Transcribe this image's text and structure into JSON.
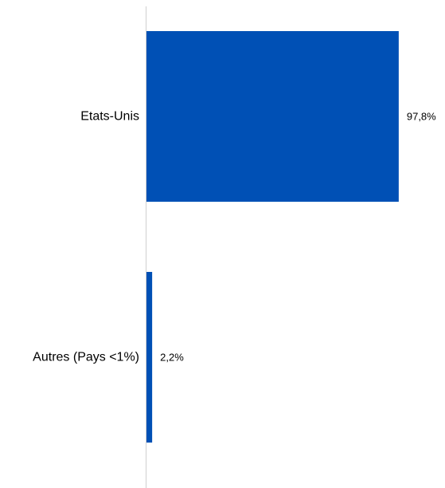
{
  "chart_data": {
    "type": "bar",
    "orientation": "horizontal",
    "categories": [
      "Etats-Unis",
      "Autres (Pays <1%)"
    ],
    "values": [
      97.8,
      2.2
    ],
    "value_labels": [
      "97,8%",
      "2,2%"
    ],
    "unit": "%",
    "xlim": [
      0,
      100
    ],
    "grid": false,
    "legend": "none",
    "colors": {
      "bar": "#0050b5",
      "axis": "#d0d0d0",
      "text": "#000000"
    }
  }
}
